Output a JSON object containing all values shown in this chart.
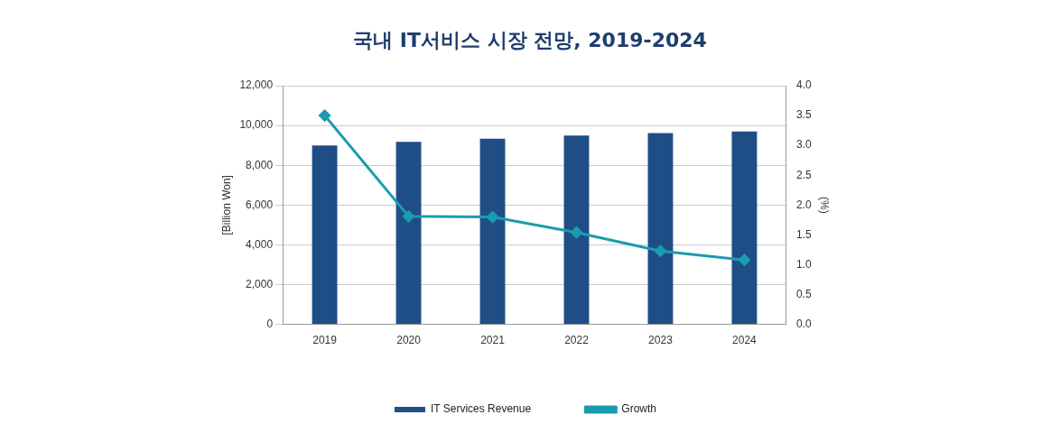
{
  "chart_data": {
    "type": "bar",
    "title": "국내 IT서비스 시장 전망, 2019-2024",
    "ylabel": "[Billion Won]",
    "y2label": "(%)",
    "categories": [
      "2019",
      "2020",
      "2021",
      "2022",
      "2023",
      "2024"
    ],
    "series": [
      {
        "name": "IT Services Revenue",
        "color": "#1f4e87",
        "values": [
          9000,
          9180,
          9340,
          9490,
          9620,
          9700
        ]
      },
      {
        "name": "Growth",
        "type": "line",
        "axis": "y2",
        "color": "#1b9bb0",
        "values": [
          3.5,
          1.81,
          1.8,
          1.54,
          1.23,
          1.08
        ]
      }
    ],
    "ylim": [
      0,
      12000
    ],
    "yticks": [
      {
        "value": 0,
        "label": "0"
      },
      {
        "value": 2000,
        "label": "2,000"
      },
      {
        "value": 4000,
        "label": "4,000"
      },
      {
        "value": 6000,
        "label": "6,000"
      },
      {
        "value": 8000,
        "label": "8,000"
      },
      {
        "value": 10000,
        "label": "10,000"
      },
      {
        "value": 12000,
        "label": "12,000"
      }
    ],
    "y2lim": [
      0,
      4
    ],
    "y2ticks": [
      {
        "value": 0,
        "label": "0.0"
      },
      {
        "value": 0.5,
        "label": "0.5"
      },
      {
        "value": 1,
        "label": "1.0"
      },
      {
        "value": 1.5,
        "label": "1.5"
      },
      {
        "value": 2,
        "label": "2.0"
      },
      {
        "value": 2.5,
        "label": "2.5"
      },
      {
        "value": 3,
        "label": "3.0"
      },
      {
        "value": 3.5,
        "label": "3.5"
      },
      {
        "value": 4,
        "label": "4.0"
      }
    ],
    "grid": "y",
    "legend": "bottom",
    "marker": "diamond",
    "line_style": "solid"
  }
}
